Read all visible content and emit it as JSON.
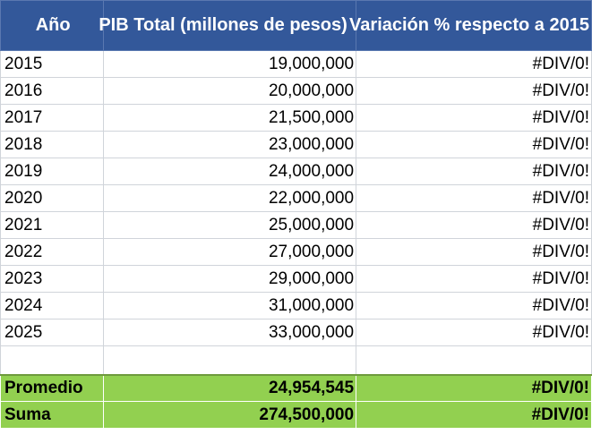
{
  "headers": [
    "Año",
    "PIB Total (millones de pesos)",
    "Variación % respecto a 2015"
  ],
  "rows": [
    {
      "year": "2015",
      "pib": "19,000,000",
      "var": "#DIV/0!"
    },
    {
      "year": "2016",
      "pib": "20,000,000",
      "var": "#DIV/0!"
    },
    {
      "year": "2017",
      "pib": "21,500,000",
      "var": "#DIV/0!"
    },
    {
      "year": "2018",
      "pib": "23,000,000",
      "var": "#DIV/0!"
    },
    {
      "year": "2019",
      "pib": "24,000,000",
      "var": "#DIV/0!"
    },
    {
      "year": "2020",
      "pib": "22,000,000",
      "var": "#DIV/0!"
    },
    {
      "year": "2021",
      "pib": "25,000,000",
      "var": "#DIV/0!"
    },
    {
      "year": "2022",
      "pib": "27,000,000",
      "var": "#DIV/0!"
    },
    {
      "year": "2023",
      "pib": "29,000,000",
      "var": "#DIV/0!"
    },
    {
      "year": "2024",
      "pib": "31,000,000",
      "var": "#DIV/0!"
    },
    {
      "year": "2025",
      "pib": "33,000,000",
      "var": "#DIV/0!"
    }
  ],
  "summary": {
    "promedio": {
      "label": "Promedio",
      "pib": "24,954,545",
      "var": "#DIV/0!"
    },
    "suma": {
      "label": "Suma",
      "pib": "274,500,000",
      "var": "#DIV/0!"
    }
  },
  "colors": {
    "header_bg": "#33589a",
    "header_text": "#ffffff",
    "total_bg": "#92d050"
  }
}
